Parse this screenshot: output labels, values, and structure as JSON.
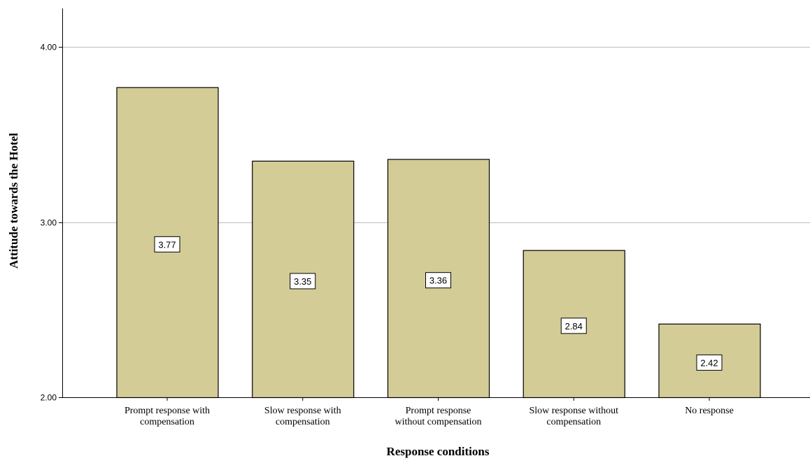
{
  "chart_data": {
    "type": "bar",
    "categories": [
      [
        "Prompt response with",
        "compensation"
      ],
      [
        "Slow response with",
        "compensation"
      ],
      [
        "Prompt response",
        "without compensation"
      ],
      [
        "Slow response without",
        "compensation"
      ],
      [
        "No response"
      ]
    ],
    "values": [
      3.77,
      3.35,
      3.36,
      2.84,
      2.42
    ],
    "data_labels": [
      "3.77",
      "3.35",
      "3.36",
      "2.84",
      "2.42"
    ],
    "title": "",
    "xlabel": "Response conditions",
    "ylabel": "Attitude towards the Hotel",
    "ylim": [
      2.0,
      4.22
    ],
    "y_ticks": [
      2.0,
      3.0,
      4.0
    ],
    "y_tick_labels": [
      "2.00",
      "3.00",
      "4.00"
    ],
    "grid": true,
    "legend": "none",
    "colors": {
      "bar_fill": "#d3cc96",
      "bar_stroke": "#000000",
      "grid": "#bdbdbd",
      "axis": "#000000"
    }
  }
}
